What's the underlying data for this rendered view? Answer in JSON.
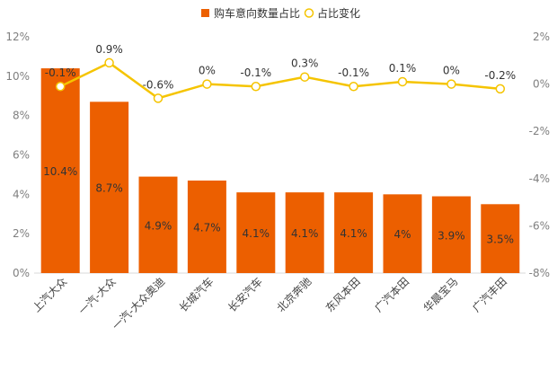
{
  "chart_data": {
    "type": "bar+line",
    "title": "",
    "legend": [
      {
        "name": "购车意向数量占比",
        "kind": "bar",
        "color": "#ec5f00"
      },
      {
        "name": "占比变化",
        "kind": "line",
        "color": "#f5c400"
      }
    ],
    "legend_position": "top-center",
    "categories": [
      "上汽大众",
      "一汽-大众",
      "一汽-大众奥迪",
      "长城汽车",
      "长安汽车",
      "北京奔驰",
      "东风本田",
      "广汽本田",
      "华晨宝马",
      "广汽丰田"
    ],
    "series": [
      {
        "name": "购车意向数量占比",
        "type": "bar",
        "axis": "left",
        "values": [
          10.4,
          8.7,
          4.9,
          4.7,
          4.1,
          4.1,
          4.1,
          4.0,
          3.9,
          3.5
        ],
        "labels": [
          "10.4%",
          "8.7%",
          "4.9%",
          "4.7%",
          "4.1%",
          "4.1%",
          "4.1%",
          "4%",
          "3.9%",
          "3.5%"
        ]
      },
      {
        "name": "占比变化",
        "type": "line",
        "axis": "right",
        "values": [
          -0.1,
          0.9,
          -0.6,
          0.0,
          -0.1,
          0.3,
          -0.1,
          0.1,
          0.0,
          -0.2
        ],
        "labels": [
          "-0.1%",
          "0.9%",
          "-0.6%",
          "0%",
          "-0.1%",
          "0.3%",
          "-0.1%",
          "0.1%",
          "0%",
          "-0.2%"
        ]
      }
    ],
    "y_left": {
      "min": 0,
      "max": 12,
      "ticks": [
        "0%",
        "2%",
        "4%",
        "6%",
        "8%",
        "10%",
        "12%"
      ]
    },
    "y_right": {
      "min": -8,
      "max": 2,
      "ticks": [
        "-8%",
        "-6%",
        "-4%",
        "-2%",
        "0%",
        "2%"
      ]
    },
    "grid": false
  }
}
